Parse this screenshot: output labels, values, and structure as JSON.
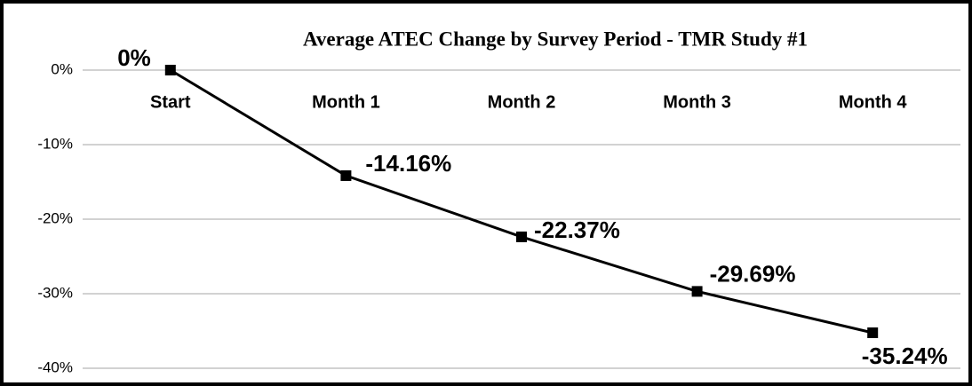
{
  "chart_data": {
    "type": "line",
    "title": "Average ATEC Change by Survey Period - TMR Study #1",
    "categories": [
      "Start",
      "Month 1",
      "Month 2",
      "Month 3",
      "Month 4"
    ],
    "values": [
      0,
      -14.16,
      -22.37,
      -29.69,
      -35.24
    ],
    "value_labels": [
      "0%",
      "-14.16%",
      "-22.37%",
      "-29.69%",
      "-35.24%"
    ],
    "color": "#000000",
    "ylim": [
      -40,
      0
    ],
    "yticks": [
      {
        "value": 0,
        "label": "0%"
      },
      {
        "value": -10,
        "label": "-10%"
      },
      {
        "value": -20,
        "label": "-20%"
      },
      {
        "value": -30,
        "label": "-30%"
      },
      {
        "value": -40,
        "label": "-40%"
      }
    ],
    "grid": true
  }
}
